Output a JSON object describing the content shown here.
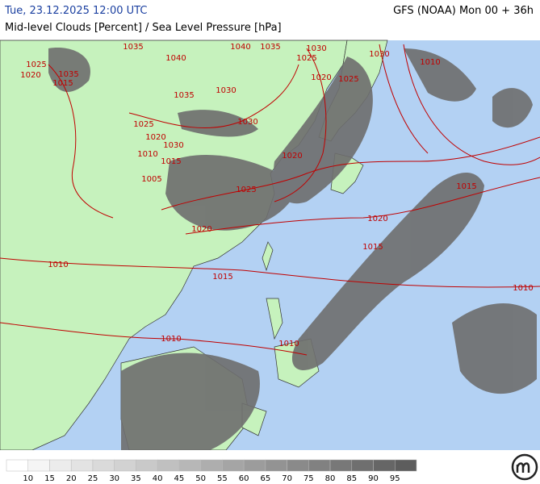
{
  "header": {
    "datetime": "Tue, 23.12.2025 12:00 UTC",
    "subtitle": "Mid-level Clouds [Percent] / Sea Level Pressure [hPa]",
    "model": "GFS (NOAA) Mon 00 + 36h"
  },
  "isobar_labels": [
    1035,
    1040,
    1040,
    1035,
    1030,
    1025,
    1030,
    1010,
    1020,
    1025,
    1025,
    1020,
    1035,
    1015,
    1035,
    1030,
    1025,
    1020,
    1030,
    1010,
    1015,
    1005,
    1030,
    1020,
    1025,
    1015,
    1020,
    1020,
    1015,
    1010,
    1015,
    1010,
    1010,
    1010
  ],
  "colorbar": {
    "labels": [
      10,
      15,
      20,
      25,
      30,
      35,
      40,
      45,
      50,
      55,
      60,
      65,
      70,
      75,
      80,
      85,
      90,
      95
    ],
    "swatch_colors": [
      "#ffffff",
      "#f5f5f5",
      "#ececec",
      "#e3e3e3",
      "#dadada",
      "#d2d2d2",
      "#c9c9c9",
      "#c0c0c0",
      "#b7b7b7",
      "#aeaeae",
      "#a5a5a5",
      "#9c9c9c",
      "#939393",
      "#8a8a8a",
      "#818181",
      "#787878",
      "#6f6f6f",
      "#666666",
      "#5d5d5d"
    ]
  }
}
